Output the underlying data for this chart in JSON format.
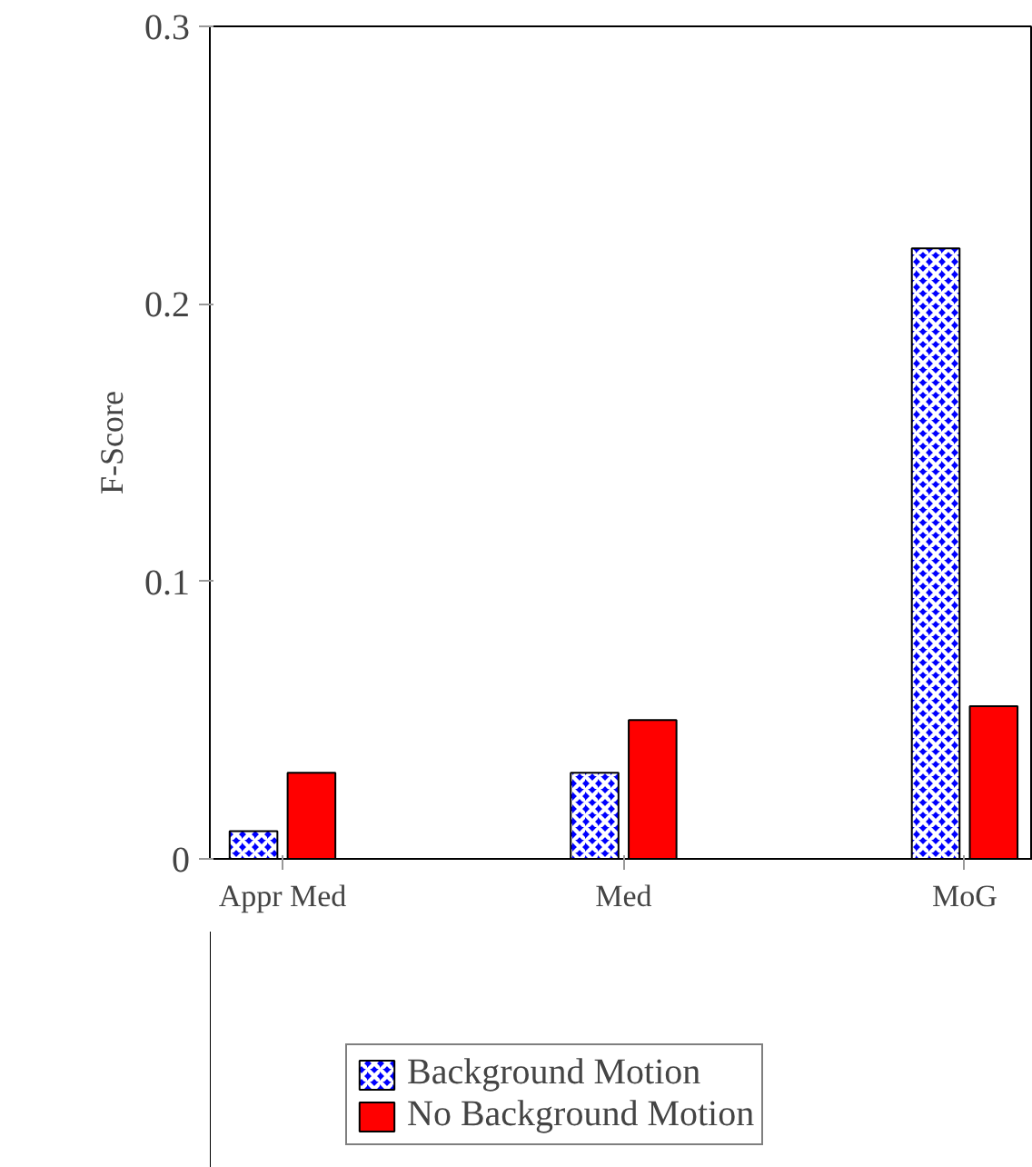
{
  "chart_data": {
    "type": "bar",
    "ylabel": "F-Score",
    "categories": [
      "Appr Med",
      "Med",
      "MoG"
    ],
    "series": [
      {
        "name": "Background Motion",
        "color": "#0000ff",
        "values": [
          0.01,
          0.031,
          0.22
        ]
      },
      {
        "name": "No Background Motion",
        "color": "#ff0000",
        "values": [
          0.031,
          0.05,
          0.055
        ]
      }
    ],
    "ylim": [
      0,
      0.3
    ],
    "yticks": [
      0,
      0.1,
      0.2,
      0.3
    ],
    "grid": false,
    "legend": "bottom"
  }
}
